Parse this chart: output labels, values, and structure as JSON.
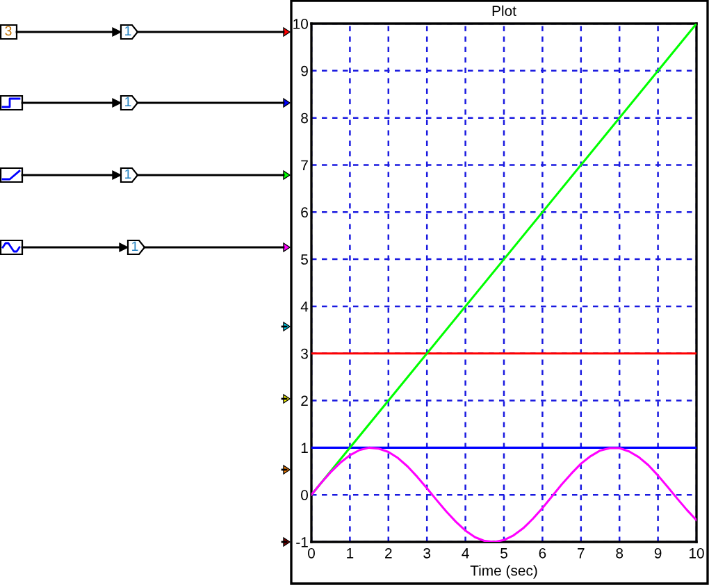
{
  "chart_data": {
    "type": "line",
    "title": "Plot",
    "xlabel": "Time (sec)",
    "xlim": [
      0,
      10
    ],
    "ylim": [
      -1,
      10
    ],
    "xticks": [
      0,
      1,
      2,
      3,
      4,
      5,
      6,
      7,
      8,
      9,
      10
    ],
    "yticks": [
      -1,
      0,
      1,
      2,
      3,
      4,
      5,
      6,
      7,
      8,
      9,
      10
    ],
    "grid": true,
    "annotations": [
      "3",
      "1",
      "1",
      "1",
      "1"
    ],
    "series": [
      {
        "color": "#ff0000",
        "x": [
          0,
          10
        ],
        "values": [
          3,
          3
        ]
      },
      {
        "color": "#0000ff",
        "x": [
          0,
          10
        ],
        "values": [
          1,
          1
        ]
      },
      {
        "color": "#00ff00",
        "x": [
          0,
          10
        ],
        "values": [
          0,
          10
        ]
      },
      {
        "color": "#ff00ff",
        "x": [
          0,
          0.25,
          0.5,
          0.75,
          1,
          1.25,
          1.5,
          1.75,
          2,
          2.25,
          2.5,
          2.75,
          3,
          3.25,
          3.5,
          3.75,
          4,
          4.25,
          4.5,
          4.75,
          5,
          5.25,
          5.5,
          5.75,
          6,
          6.25,
          6.5,
          6.75,
          7,
          7.25,
          7.5,
          7.75,
          8,
          8.25,
          8.5,
          8.75,
          9,
          9.25,
          9.5,
          9.75,
          10
        ],
        "values": [
          0,
          0.25,
          0.48,
          0.68,
          0.84,
          0.95,
          1,
          0.98,
          0.91,
          0.78,
          0.6,
          0.38,
          0.14,
          -0.11,
          -0.35,
          -0.57,
          -0.76,
          -0.9,
          -0.98,
          -1,
          -0.96,
          -0.86,
          -0.71,
          -0.51,
          -0.28,
          -0.03,
          0.22,
          0.45,
          0.66,
          0.82,
          0.94,
          0.99,
          0.99,
          0.92,
          0.8,
          0.63,
          0.41,
          0.17,
          -0.08,
          -0.32,
          -0.54
        ]
      }
    ]
  }
}
